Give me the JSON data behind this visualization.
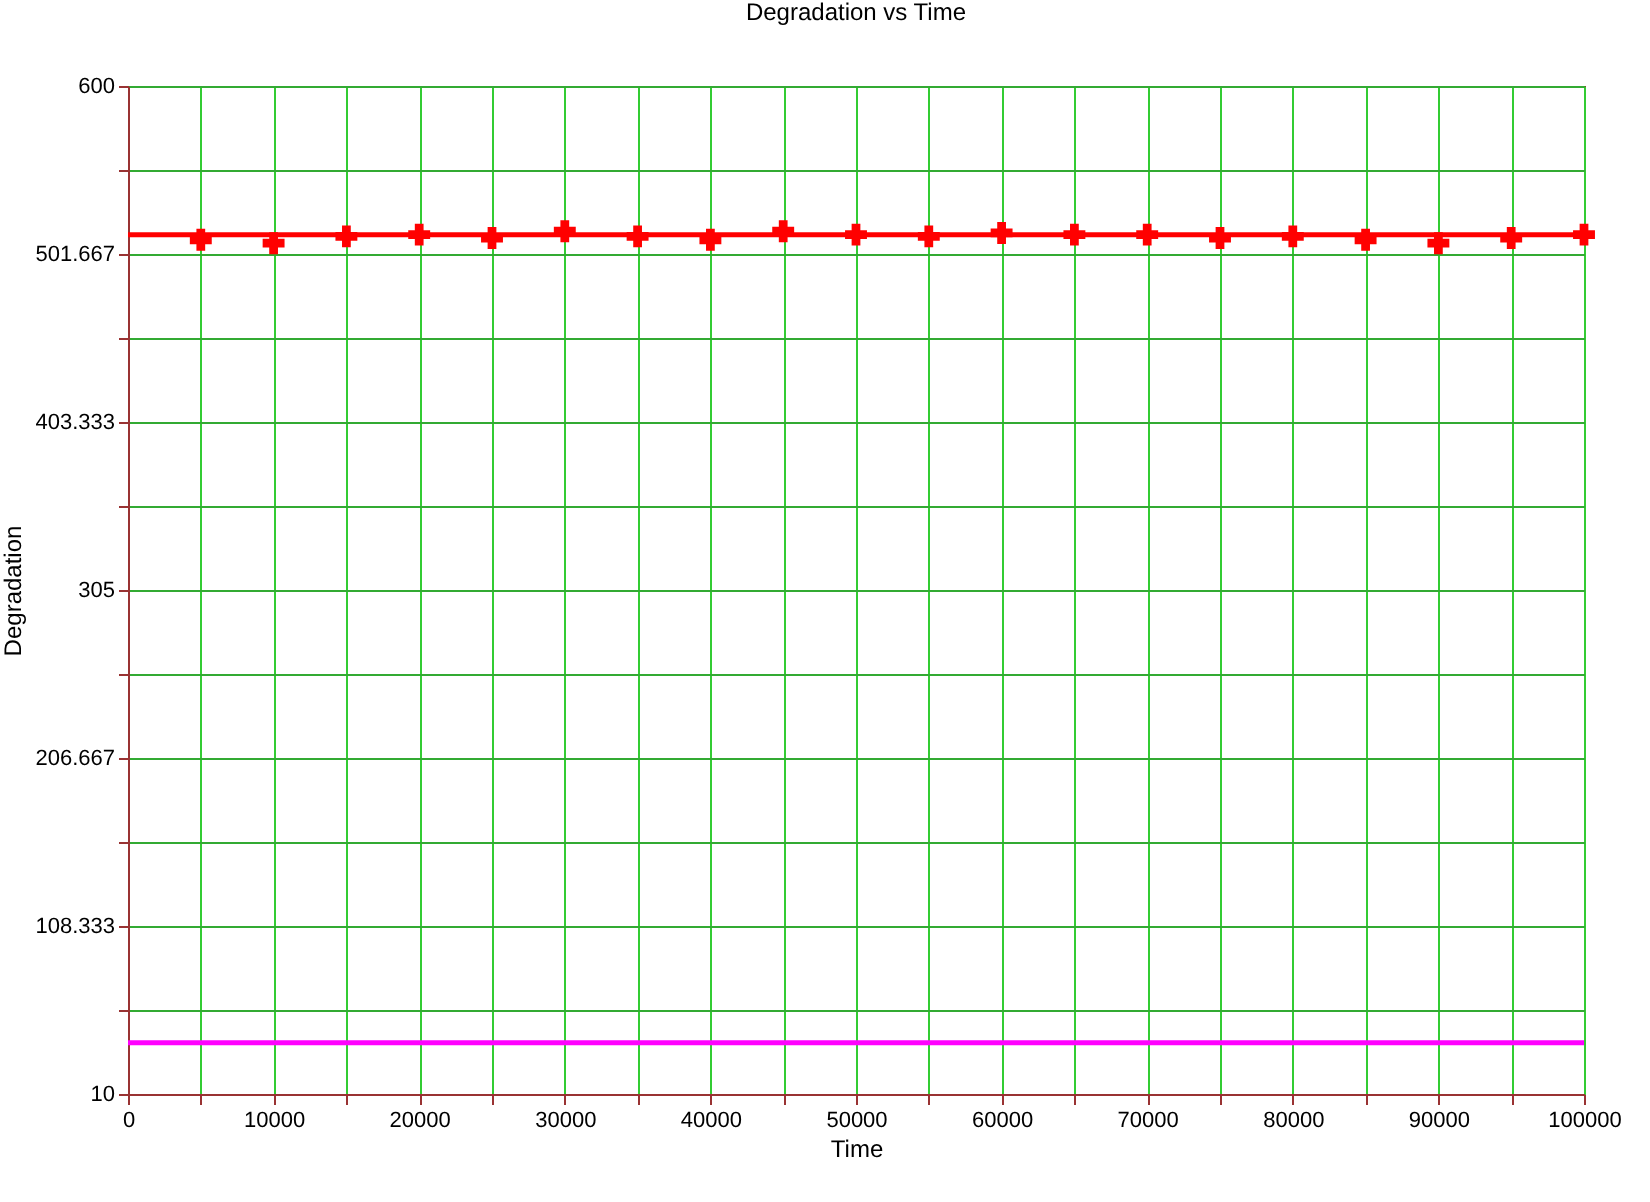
{
  "chart_data": {
    "type": "scatter",
    "title": "Degradation vs Time",
    "xlabel": "Time",
    "ylabel": "Degradation",
    "x": [
      5000,
      10000,
      15000,
      20000,
      25000,
      30000,
      35000,
      40000,
      45000,
      50000,
      55000,
      60000,
      65000,
      70000,
      75000,
      80000,
      85000,
      90000,
      95000,
      100000
    ],
    "series": [
      {
        "color": "#ff0000",
        "values": [
          510,
          508,
          512,
          513,
          511,
          515,
          512,
          510,
          515,
          513,
          512,
          514,
          513,
          513,
          511,
          512,
          510,
          508,
          511,
          513
        ]
      }
    ],
    "xlim": [
      0,
      100000
    ],
    "xticks": [
      0,
      {
        "value": 5000,
        "label": null
      },
      10000,
      {
        "value": 15000,
        "label": null
      },
      20000,
      {
        "value": 25000,
        "label": null
      },
      30000,
      {
        "value": 35000,
        "label": null
      },
      40000,
      {
        "value": 45000,
        "label": null
      },
      50000,
      {
        "value": 55000,
        "label": null
      },
      60000,
      {
        "value": 65000,
        "label": null
      },
      70000,
      {
        "value": 75000,
        "label": null
      },
      80000,
      {
        "value": 85000,
        "label": null
      },
      90000,
      {
        "value": 95000,
        "label": null
      },
      100000
    ],
    "ylim": [
      10,
      600
    ],
    "yticks": [
      10,
      {
        "value": 59.167,
        "label": null
      },
      108.333,
      {
        "value": 157.5,
        "label": null
      },
      206.667,
      {
        "value": 255.833,
        "label": null
      },
      305,
      {
        "value": 354.167,
        "label": null
      },
      403.333,
      {
        "value": 452.5,
        "label": null
      },
      501.667,
      {
        "value": 550.833,
        "label": null
      },
      600
    ],
    "ref_lines": [
      {
        "axis": "y",
        "value": 513,
        "color": "#ff0000"
      },
      {
        "axis": "y",
        "value": 40,
        "color": "#ff00ff"
      }
    ],
    "grid": true,
    "marker": "cross"
  }
}
